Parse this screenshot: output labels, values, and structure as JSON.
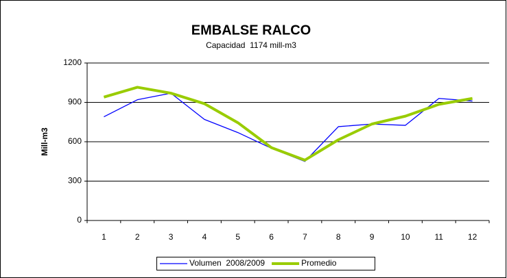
{
  "chart_data": {
    "type": "line",
    "title": "EMBALSE RALCO",
    "subtitle": "Capacidad  1174 mill-m3",
    "y_label": "Mill-m3",
    "categories": [
      "1",
      "2",
      "3",
      "4",
      "5",
      "6",
      "7",
      "8",
      "9",
      "10",
      "11",
      "12"
    ],
    "series": [
      {
        "name": "Volumen  2008/2009",
        "color": "#0000ff",
        "width": 1.3,
        "values": [
          790,
          920,
          970,
          770,
          670,
          550,
          450,
          715,
          735,
          725,
          930,
          910
        ]
      },
      {
        "name": "Promedio",
        "color": "#99cc00",
        "width": 4,
        "values": [
          940,
          1015,
          970,
          890,
          745,
          555,
          460,
          615,
          735,
          795,
          885,
          930
        ]
      }
    ],
    "ylim": [
      0,
      1200
    ],
    "yticks": [
      0,
      300,
      600,
      900,
      1200
    ],
    "grid": true
  }
}
